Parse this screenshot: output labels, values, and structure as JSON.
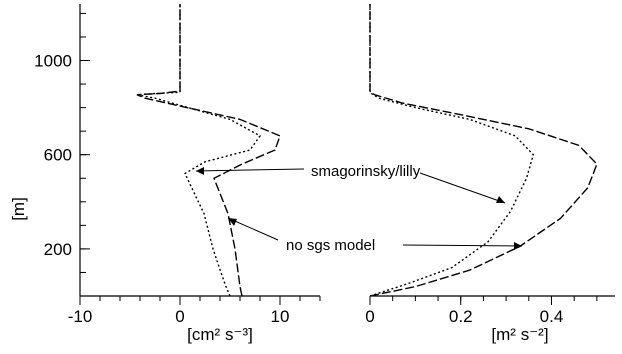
{
  "chart_data": [
    {
      "type": "line",
      "panel": "left",
      "xlabel": "[cm² s⁻³]",
      "ylabel": "[m]",
      "xlim": [
        -10,
        14
      ],
      "ylim": [
        0,
        1240
      ],
      "xticks": [
        -10,
        0,
        10
      ],
      "yticks": [
        200,
        600,
        1000
      ],
      "series": [
        {
          "style": "dotted",
          "points": [
            [
              5,
              0
            ],
            [
              4.5,
              50
            ],
            [
              3.3,
              200
            ],
            [
              2.4,
              350
            ],
            [
              0.5,
              520
            ],
            [
              2.5,
              570
            ],
            [
              7,
              620
            ],
            [
              8,
              680
            ],
            [
              5,
              750
            ],
            [
              -2.5,
              840
            ],
            [
              -4.3,
              855
            ],
            [
              -2.5,
              860
            ],
            [
              0,
              865
            ],
            [
              0,
              1240
            ]
          ]
        },
        {
          "style": "dashed",
          "points": [
            [
              6.2,
              0
            ],
            [
              6,
              40
            ],
            [
              5.5,
              200
            ],
            [
              4.8,
              350
            ],
            [
              3.4,
              500
            ],
            [
              6.2,
              560
            ],
            [
              9.5,
              620
            ],
            [
              10,
              680
            ],
            [
              6,
              750
            ],
            [
              -3.5,
              840
            ],
            [
              -4.3,
              855
            ],
            [
              -2,
              860
            ],
            [
              0,
              870
            ],
            [
              0,
              1240
            ]
          ]
        }
      ]
    },
    {
      "type": "line",
      "panel": "right",
      "xlabel": "[m² s⁻²]",
      "xlim": [
        0,
        0.54
      ],
      "ylim": [
        0,
        1240
      ],
      "xticks": [
        0,
        0.2,
        0.4
      ],
      "series": [
        {
          "name": "smagorinsky/lilly",
          "style": "dotted",
          "points": [
            [
              0,
              0
            ],
            [
              0.08,
              50
            ],
            [
              0.18,
              120
            ],
            [
              0.26,
              230
            ],
            [
              0.31,
              360
            ],
            [
              0.345,
              500
            ],
            [
              0.36,
              600
            ],
            [
              0.32,
              680
            ],
            [
              0.22,
              750
            ],
            [
              0.1,
              800
            ],
            [
              0.02,
              840
            ],
            [
              0.003,
              860
            ],
            [
              0,
              870
            ],
            [
              0,
              1240
            ]
          ]
        },
        {
          "name": "no sgs model",
          "style": "dashed",
          "points": [
            [
              0,
              0
            ],
            [
              0.1,
              40
            ],
            [
              0.22,
              110
            ],
            [
              0.33,
              210
            ],
            [
              0.42,
              330
            ],
            [
              0.48,
              460
            ],
            [
              0.5,
              560
            ],
            [
              0.46,
              640
            ],
            [
              0.35,
              710
            ],
            [
              0.2,
              770
            ],
            [
              0.07,
              820
            ],
            [
              0.01,
              855
            ],
            [
              0,
              870
            ],
            [
              0,
              1240
            ]
          ]
        }
      ]
    }
  ],
  "annotations": {
    "smagorinsky": "smagorinsky/lilly",
    "nosgs": "no sgs model"
  }
}
